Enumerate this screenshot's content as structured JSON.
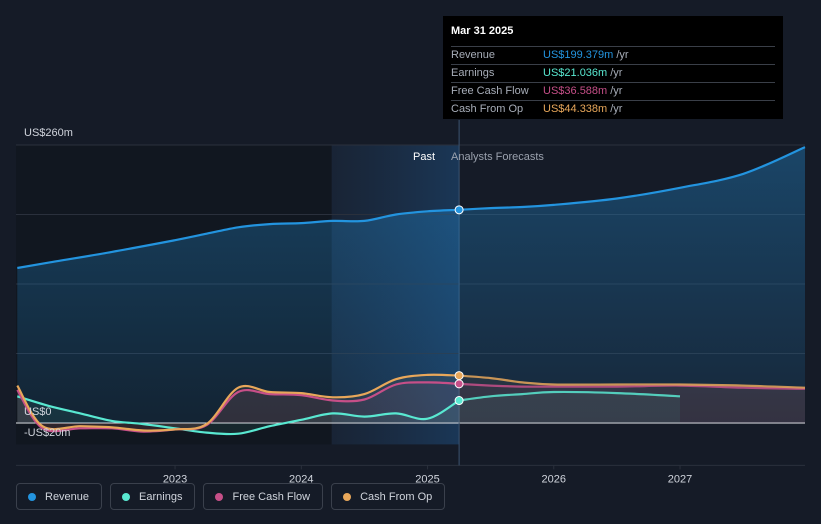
{
  "chart_data": {
    "type": "area",
    "y_axis": {
      "top_label": "US$260m",
      "zero_label": "US$0",
      "bottom_label": "-US$20m",
      "ylim": [
        -20,
        260
      ]
    },
    "x_axis": {
      "tick_labels": [
        "2023",
        "2024",
        "2025",
        "2026",
        "2027"
      ],
      "tick_values": [
        2023,
        2024,
        2025,
        2026,
        2027
      ],
      "xlim": [
        2021.74,
        2027.99
      ]
    },
    "past_label": "Past",
    "forecast_label": "Analysts Forecasts",
    "past_region_start": 2024.24,
    "divider_x": 2025.25,
    "series": [
      {
        "name": "Revenue",
        "color": "#2394df",
        "past": [
          [
            2021.75,
            145
          ],
          [
            2022.0,
            150
          ],
          [
            2022.5,
            160
          ],
          [
            2023.0,
            171
          ],
          [
            2023.25,
            177
          ],
          [
            2023.5,
            183
          ],
          [
            2023.75,
            186
          ],
          [
            2024.0,
            187
          ],
          [
            2024.25,
            189
          ],
          [
            2024.5,
            189
          ],
          [
            2024.75,
            195
          ],
          [
            2025.0,
            198
          ],
          [
            2025.25,
            199.379
          ]
        ],
        "forecast": [
          [
            2025.25,
            199.379
          ],
          [
            2025.5,
            201
          ],
          [
            2025.75,
            202
          ],
          [
            2026.0,
            204
          ],
          [
            2026.5,
            210
          ],
          [
            2027.0,
            220
          ],
          [
            2027.5,
            233
          ],
          [
            2027.99,
            258
          ]
        ]
      },
      {
        "name": "Earnings",
        "color": "#59e8d1",
        "past": [
          [
            2021.75,
            25
          ],
          [
            2022.0,
            16
          ],
          [
            2022.25,
            9
          ],
          [
            2022.5,
            2
          ],
          [
            2022.75,
            -1
          ],
          [
            2023.0,
            -5
          ],
          [
            2023.25,
            -9
          ],
          [
            2023.5,
            -10
          ],
          [
            2023.75,
            -3
          ],
          [
            2024.0,
            3
          ],
          [
            2024.25,
            9
          ],
          [
            2024.5,
            6
          ],
          [
            2024.75,
            9
          ],
          [
            2025.0,
            4
          ],
          [
            2025.25,
            21.036
          ]
        ],
        "forecast": [
          [
            2025.25,
            21.036
          ],
          [
            2025.5,
            25
          ],
          [
            2025.75,
            27
          ],
          [
            2026.0,
            29
          ],
          [
            2026.5,
            28
          ],
          [
            2027.0,
            25
          ]
        ]
      },
      {
        "name": "Free Cash Flow",
        "color": "#c64f88",
        "past": [
          [
            2021.75,
            31
          ],
          [
            2021.95,
            -5
          ],
          [
            2022.25,
            -5
          ],
          [
            2022.5,
            -5
          ],
          [
            2022.75,
            -8
          ],
          [
            2023.0,
            -6
          ],
          [
            2023.25,
            -2
          ],
          [
            2023.5,
            29
          ],
          [
            2023.75,
            27
          ],
          [
            2024.0,
            26
          ],
          [
            2024.25,
            21
          ],
          [
            2024.5,
            22
          ],
          [
            2024.75,
            36
          ],
          [
            2025.0,
            38
          ],
          [
            2025.25,
            36.588
          ]
        ],
        "forecast": [
          [
            2025.25,
            36.588
          ],
          [
            2025.5,
            35
          ],
          [
            2025.75,
            34
          ],
          [
            2026.0,
            34
          ],
          [
            2026.5,
            34
          ],
          [
            2027.0,
            35
          ],
          [
            2027.5,
            33
          ],
          [
            2027.99,
            32
          ]
        ]
      },
      {
        "name": "Cash From Op",
        "color": "#e8a75a",
        "past": [
          [
            2021.75,
            35
          ],
          [
            2021.95,
            -3
          ],
          [
            2022.25,
            -3
          ],
          [
            2022.5,
            -4
          ],
          [
            2022.75,
            -7
          ],
          [
            2023.0,
            -6
          ],
          [
            2023.25,
            -1
          ],
          [
            2023.5,
            33
          ],
          [
            2023.75,
            29
          ],
          [
            2024.0,
            28
          ],
          [
            2024.25,
            24
          ],
          [
            2024.5,
            27
          ],
          [
            2024.75,
            41
          ],
          [
            2025.0,
            45
          ],
          [
            2025.25,
            44.338
          ]
        ],
        "forecast": [
          [
            2025.25,
            44.338
          ],
          [
            2025.5,
            42
          ],
          [
            2025.75,
            38
          ],
          [
            2026.0,
            36
          ],
          [
            2026.5,
            36
          ],
          [
            2027.0,
            36
          ],
          [
            2027.5,
            35
          ],
          [
            2027.99,
            33
          ]
        ]
      }
    ]
  },
  "tooltip": {
    "date": "Mar 31 2025",
    "rows": [
      {
        "label": "Revenue",
        "value": "US$199.379m",
        "unit": "/yr",
        "color": "#2394df"
      },
      {
        "label": "Earnings",
        "value": "US$21.036m",
        "unit": "/yr",
        "color": "#59e8d1"
      },
      {
        "label": "Free Cash Flow",
        "value": "US$36.588m",
        "unit": "/yr",
        "color": "#c64f88"
      },
      {
        "label": "Cash From Op",
        "value": "US$44.338m",
        "unit": "/yr",
        "color": "#e8a75a"
      }
    ]
  },
  "legend": [
    {
      "label": "Revenue",
      "color": "#2394df"
    },
    {
      "label": "Earnings",
      "color": "#59e8d1"
    },
    {
      "label": "Free Cash Flow",
      "color": "#c64f88"
    },
    {
      "label": "Cash From Op",
      "color": "#e8a75a"
    }
  ]
}
